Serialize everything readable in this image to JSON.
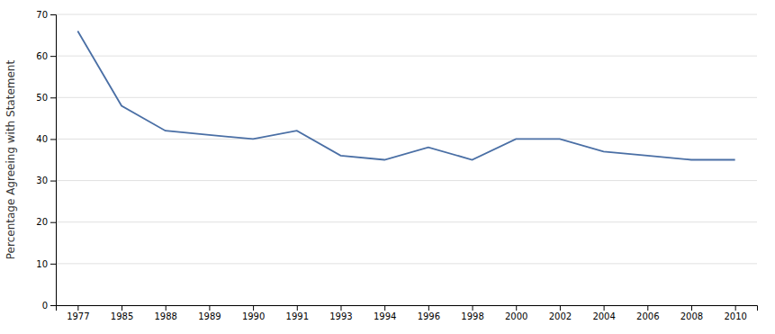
{
  "chart_data": {
    "type": "line",
    "categories": [
      "1977",
      "1985",
      "1988",
      "1989",
      "1990",
      "1991",
      "1993",
      "1994",
      "1996",
      "1998",
      "2000",
      "2002",
      "2004",
      "2006",
      "2008",
      "2010"
    ],
    "values": [
      66,
      48,
      42,
      41,
      40,
      42,
      36,
      35,
      38,
      35,
      40,
      40,
      37,
      36,
      35,
      35
    ],
    "ylabel": "Percentage Agreeing with Statement",
    "color": "#4a6fa5",
    "ylim": [
      0,
      70
    ],
    "yticks": [
      0,
      10,
      20,
      30,
      40,
      50,
      60,
      70
    ],
    "grid": true
  }
}
